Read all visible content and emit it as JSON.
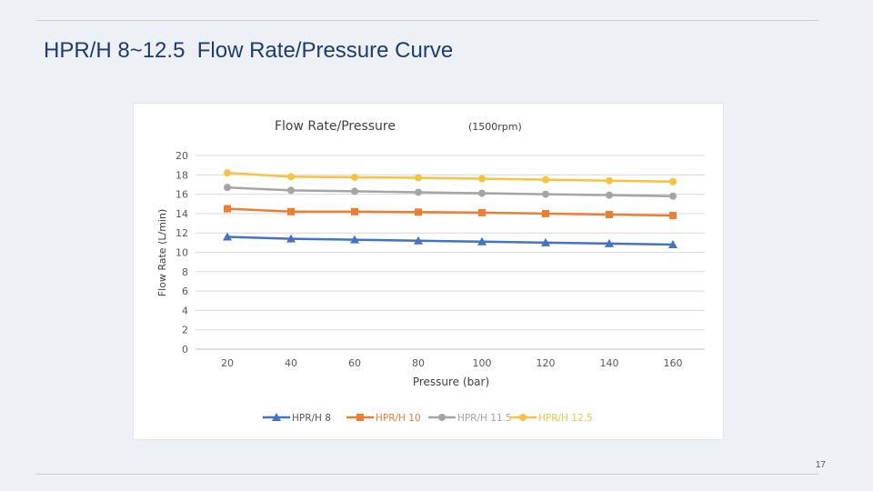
{
  "slide": {
    "title": "HPR/H 8~12.5  Flow Rate/Pressure Curve",
    "page_number": "17"
  },
  "chart_data": {
    "type": "line",
    "title": "Flow Rate/Pressure",
    "subtitle": "(1500rpm)",
    "xlabel": "Pressure (bar)",
    "ylabel": "Flow Rate (L/min)",
    "x": [
      20,
      40,
      60,
      80,
      100,
      120,
      140,
      160
    ],
    "ylim": [
      0,
      20
    ],
    "yticks": [
      0,
      2,
      4,
      6,
      8,
      10,
      12,
      14,
      16,
      18,
      20
    ],
    "grid": true,
    "legend_position": "bottom",
    "series": [
      {
        "name": "HPR/H 8",
        "color": "#4472c4",
        "marker": "triangle",
        "values": [
          11.6,
          11.4,
          11.3,
          11.2,
          11.1,
          11.0,
          10.9,
          10.8
        ]
      },
      {
        "name": "HPR/H 10",
        "color": "#ed7d31",
        "marker": "square",
        "values": [
          14.5,
          14.2,
          14.2,
          14.15,
          14.1,
          14.0,
          13.9,
          13.8
        ]
      },
      {
        "name": "HPR/H 11.5",
        "color": "#a5a5a5",
        "marker": "circle",
        "values": [
          16.7,
          16.4,
          16.3,
          16.2,
          16.1,
          16.0,
          15.9,
          15.8
        ]
      },
      {
        "name": "HPR/H 12.5",
        "color": "#f5c242",
        "marker": "circle",
        "values": [
          18.2,
          17.8,
          17.75,
          17.7,
          17.6,
          17.5,
          17.4,
          17.3
        ]
      }
    ]
  }
}
